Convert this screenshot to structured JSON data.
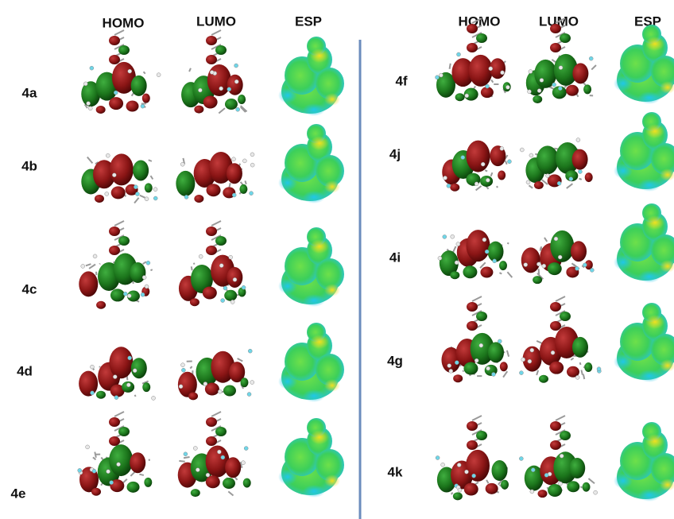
{
  "left_panel": {
    "headers": [
      "HOMO",
      "LUMO",
      "ESP"
    ],
    "rows": [
      "4a",
      "4b",
      "4c",
      "4d",
      "4e"
    ]
  },
  "right_panel": {
    "headers": [
      "HOMO",
      "LUMO",
      "ESP"
    ],
    "rows": [
      "4f",
      "4j",
      "4i",
      "4g",
      "4k"
    ]
  }
}
